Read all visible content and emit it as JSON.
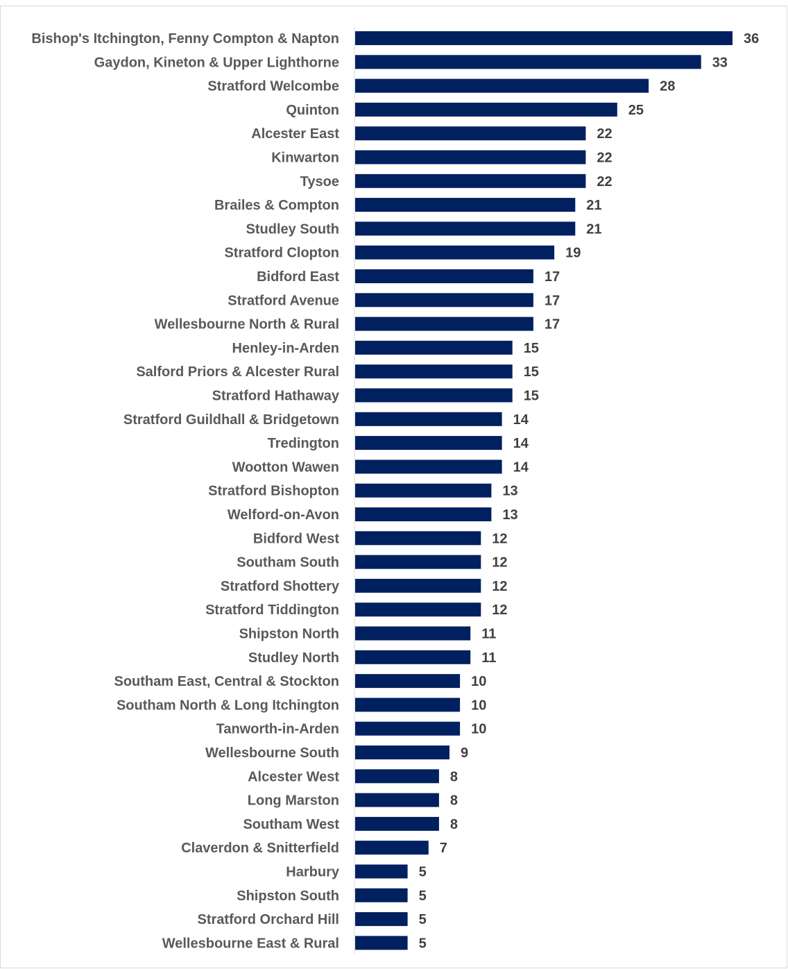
{
  "chart_data": {
    "type": "bar",
    "orientation": "horizontal",
    "title": "",
    "xlabel": "",
    "ylabel": "",
    "categories": [
      "Bishop's Itchington, Fenny Compton & Napton",
      "Gaydon, Kineton & Upper Lighthorne",
      "Stratford Welcombe",
      "Quinton",
      "Alcester East",
      "Kinwarton",
      "Tysoe",
      "Brailes & Compton",
      "Studley South",
      "Stratford Clopton",
      "Bidford East",
      "Stratford Avenue",
      "Wellesbourne North & Rural",
      "Henley-in-Arden",
      "Salford Priors & Alcester Rural",
      "Stratford Hathaway",
      "Stratford Guildhall & Bridgetown",
      "Tredington",
      "Wootton Wawen",
      "Stratford Bishopton",
      "Welford-on-Avon",
      "Bidford West",
      "Southam South",
      "Stratford Shottery",
      "Stratford Tiddington",
      "Shipston North",
      "Studley North",
      "Southam East, Central & Stockton",
      "Southam North & Long Itchington",
      "Tanworth-in-Arden",
      "Wellesbourne South",
      "Alcester West",
      "Long Marston",
      "Southam West",
      "Claverdon & Snitterfield",
      "Harbury",
      "Shipston South",
      "Stratford Orchard Hill",
      "Wellesbourne East & Rural"
    ],
    "values": [
      36,
      33,
      28,
      25,
      22,
      22,
      22,
      21,
      21,
      19,
      17,
      17,
      17,
      15,
      15,
      15,
      14,
      14,
      14,
      13,
      13,
      12,
      12,
      12,
      12,
      11,
      11,
      10,
      10,
      10,
      9,
      8,
      8,
      8,
      7,
      5,
      5,
      5,
      5
    ],
    "xlim": [
      0,
      36
    ],
    "grid": false,
    "legend": "none",
    "data_labels": true,
    "colors": {
      "bar": "#002060",
      "category_text": "#595959",
      "value_text": "#404040",
      "axis": "#d9d9d9",
      "border": "#d9d9d9"
    }
  }
}
